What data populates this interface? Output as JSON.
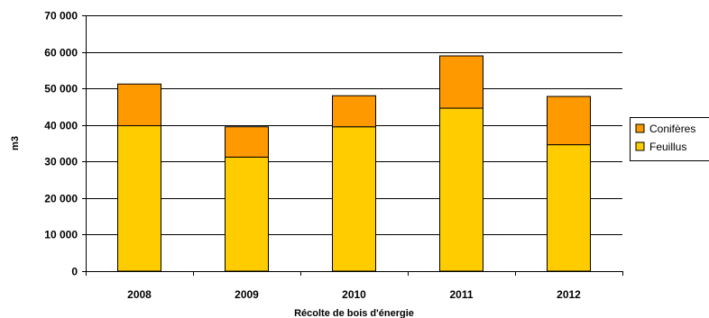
{
  "chart_data": {
    "type": "bar",
    "stacked": true,
    "categories": [
      "2008",
      "2009",
      "2010",
      "2011",
      "2012"
    ],
    "series": [
      {
        "name": "Feuillus",
        "color": "#FFCC00",
        "values": [
          39800,
          31200,
          39500,
          44600,
          34600
        ]
      },
      {
        "name": "Conifères",
        "color": "#FF9900",
        "values": [
          11400,
          8300,
          8500,
          14300,
          13200
        ]
      }
    ],
    "xlabel": "Récolte de bois d'énergie",
    "ylabel": "m3",
    "ylim": [
      0,
      70000
    ],
    "yticks": [
      0,
      10000,
      20000,
      30000,
      40000,
      50000,
      60000,
      70000
    ],
    "ytick_labels": [
      "0",
      "10 000",
      "20 000",
      "30 000",
      "40 000",
      "50 000",
      "60 000",
      "70 000"
    ],
    "grid": true,
    "legend_position": "right"
  }
}
